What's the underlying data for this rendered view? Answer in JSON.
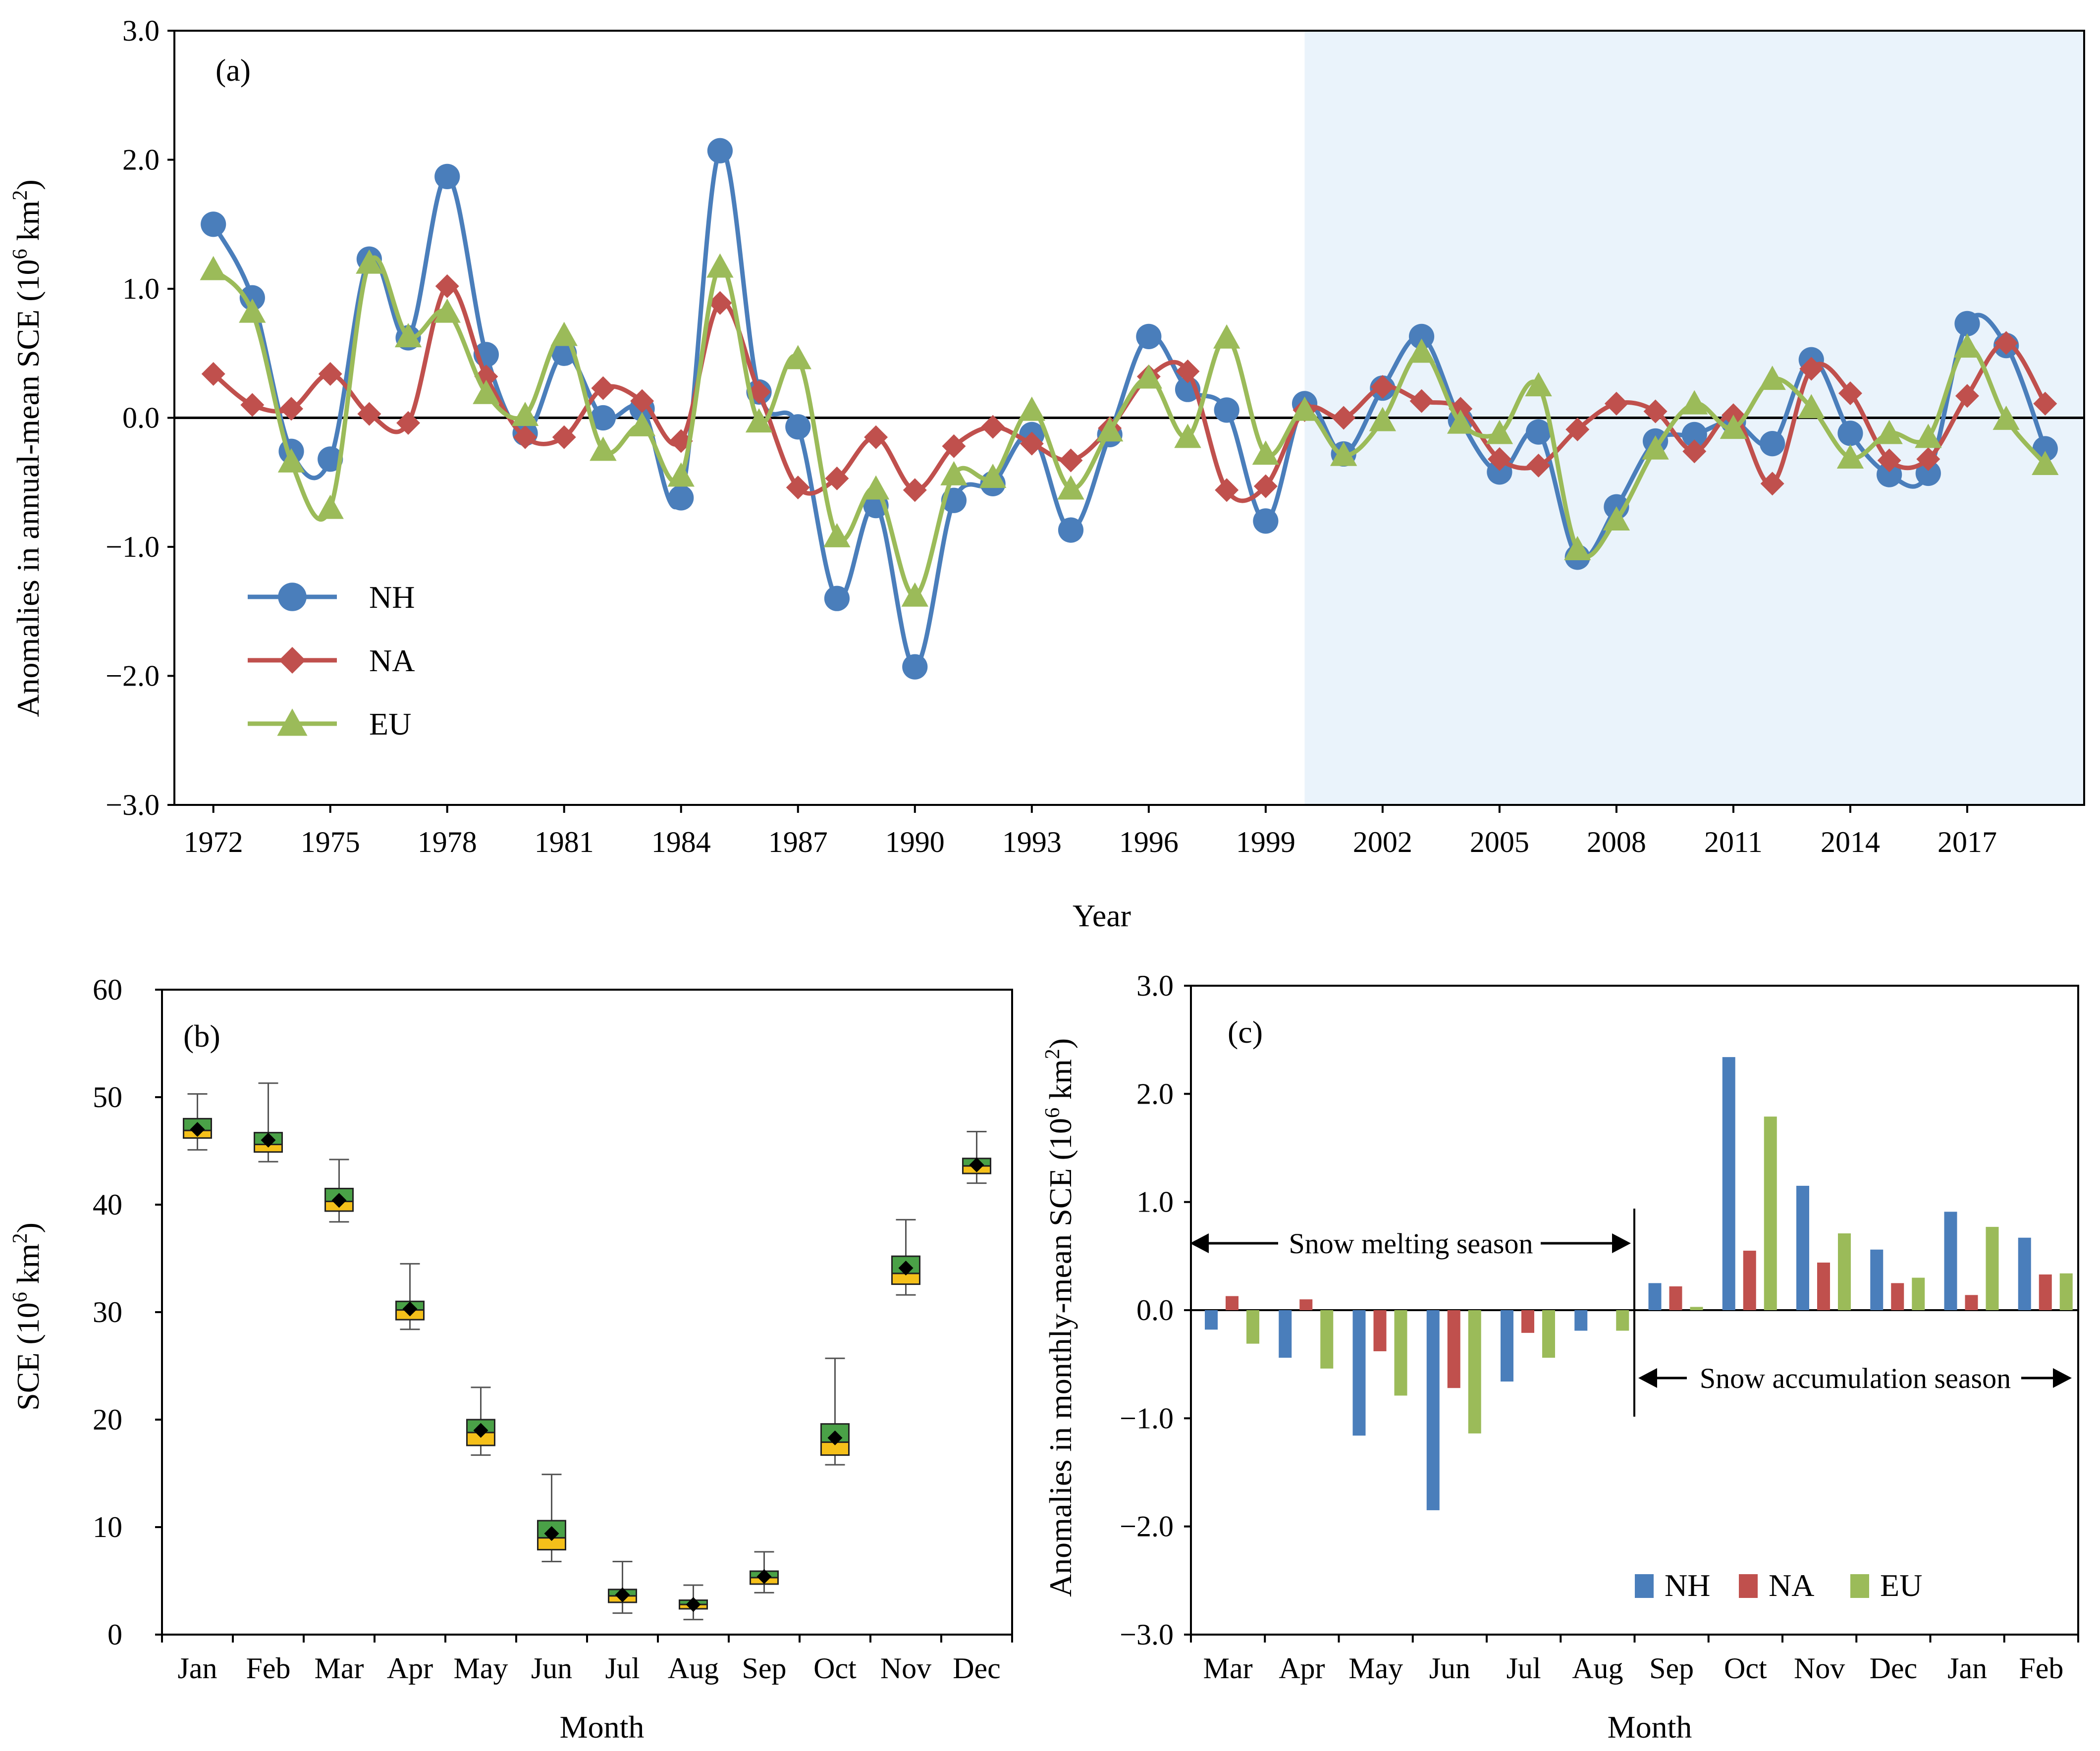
{
  "colors": {
    "nh": "#4a7ebb",
    "na": "#c0504d",
    "eu": "#9bbb59",
    "highlight": "#eaf3fb",
    "box_upper": "#4aa147",
    "box_lower": "#f5c01a"
  },
  "chart_data": [
    {
      "panel": "(a)",
      "type": "line",
      "xlabel": "Year",
      "ylabel": "Anomalies in annual-mean SCE (10",
      "ylabel_sup": "6",
      "ylabel_unit": " km",
      "ylabel_sup2": "2",
      "ylabel_end": ")",
      "ylim": [
        -3.0,
        3.0
      ],
      "yticks": [
        "3.0",
        "2.0",
        "1.0",
        "0.0",
        "−1.0",
        "−2.0",
        "−3.0"
      ],
      "ytick_values": [
        3,
        2,
        1,
        0,
        -1,
        -2,
        -3
      ],
      "xlim": [
        1971,
        2020
      ],
      "xticks": [
        "1972",
        "1975",
        "1978",
        "1981",
        "1984",
        "1987",
        "1990",
        "1993",
        "1996",
        "1999",
        "2002",
        "2005",
        "2008",
        "2011",
        "2014",
        "2017"
      ],
      "shaded_from_year": 2000,
      "legend_position": "bottom-left",
      "x": [
        1972,
        1973,
        1974,
        1975,
        1976,
        1977,
        1978,
        1979,
        1980,
        1981,
        1982,
        1983,
        1984,
        1985,
        1986,
        1987,
        1988,
        1989,
        1990,
        1991,
        1992,
        1993,
        1994,
        1995,
        1996,
        1997,
        1998,
        1999,
        2000,
        2001,
        2002,
        2003,
        2004,
        2005,
        2006,
        2007,
        2008,
        2009,
        2010,
        2011,
        2012,
        2013,
        2014,
        2015,
        2016,
        2017,
        2018,
        2019
      ],
      "series": [
        {
          "name": "NH",
          "key": "nh",
          "marker": "circle",
          "values": [
            1.5,
            0.93,
            -0.26,
            -0.32,
            1.23,
            0.62,
            1.87,
            0.49,
            -0.12,
            0.5,
            0.0,
            0.07,
            -0.62,
            2.07,
            0.2,
            -0.07,
            -1.4,
            -0.68,
            -1.93,
            -0.64,
            -0.51,
            -0.13,
            -0.87,
            -0.13,
            0.63,
            0.22,
            0.06,
            -0.8,
            0.11,
            -0.28,
            0.23,
            0.63,
            -0.02,
            -0.42,
            -0.11,
            -1.08,
            -0.69,
            -0.18,
            -0.13,
            -0.03,
            -0.2,
            0.45,
            -0.12,
            -0.44,
            -0.43,
            0.73,
            0.56,
            -0.24
          ]
        },
        {
          "name": "NA",
          "key": "na",
          "marker": "diamond",
          "values": [
            0.34,
            0.1,
            0.07,
            0.34,
            0.03,
            -0.04,
            1.02,
            0.32,
            -0.15,
            -0.15,
            0.23,
            0.13,
            -0.18,
            0.89,
            0.2,
            -0.54,
            -0.47,
            -0.15,
            -0.56,
            -0.22,
            -0.07,
            -0.2,
            -0.33,
            -0.08,
            0.32,
            0.36,
            -0.56,
            -0.53,
            0.06,
            0.0,
            0.24,
            0.13,
            0.07,
            -0.32,
            -0.37,
            -0.09,
            0.11,
            0.05,
            -0.26,
            0.02,
            -0.51,
            0.38,
            0.19,
            -0.33,
            -0.32,
            0.17,
            0.58,
            0.11
          ]
        },
        {
          "name": "EU",
          "key": "eu",
          "marker": "triangle",
          "values": [
            1.15,
            0.82,
            -0.34,
            -0.7,
            1.2,
            0.63,
            0.82,
            0.19,
            0.02,
            0.64,
            -0.25,
            -0.06,
            -0.45,
            1.17,
            -0.03,
            0.46,
            -0.92,
            -0.55,
            -1.38,
            -0.44,
            -0.46,
            0.06,
            -0.55,
            -0.1,
            0.31,
            -0.15,
            0.62,
            -0.28,
            0.06,
            -0.29,
            -0.02,
            0.51,
            -0.04,
            -0.12,
            0.25,
            -1.02,
            -0.79,
            -0.24,
            0.11,
            -0.08,
            0.3,
            0.08,
            -0.31,
            -0.12,
            -0.15,
            0.55,
            -0.01,
            -0.36
          ]
        }
      ]
    },
    {
      "panel": "(b)",
      "type": "box",
      "xlabel": "Month",
      "ylabel": "SCE (10",
      "ylabel_sup": "6",
      "ylabel_unit": " km",
      "ylabel_sup2": "2",
      "ylabel_end": ")",
      "ylim": [
        0,
        60
      ],
      "yticks": [
        "60",
        "50",
        "40",
        "30",
        "20",
        "10",
        "0"
      ],
      "ytick_values": [
        60,
        50,
        40,
        30,
        20,
        10,
        0
      ],
      "categories": [
        "Jan",
        "Feb",
        "Mar",
        "Apr",
        "May",
        "Jun",
        "Jul",
        "Aug",
        "Sep",
        "Oct",
        "Nov",
        "Dec"
      ],
      "boxes": [
        {
          "min": 45.1,
          "q1": 46.2,
          "median": 46.9,
          "q3": 48.0,
          "max": 50.3,
          "mean": 47.0
        },
        {
          "min": 44.0,
          "q1": 44.9,
          "median": 45.6,
          "q3": 46.7,
          "max": 51.3,
          "mean": 46.0
        },
        {
          "min": 38.4,
          "q1": 39.4,
          "median": 40.3,
          "q3": 41.5,
          "max": 44.2,
          "mean": 40.4
        },
        {
          "min": 28.4,
          "q1": 29.3,
          "median": 30.2,
          "q3": 31.0,
          "max": 34.5,
          "mean": 30.3
        },
        {
          "min": 16.7,
          "q1": 17.6,
          "median": 18.8,
          "q3": 20.0,
          "max": 23.0,
          "mean": 19.0
        },
        {
          "min": 6.8,
          "q1": 7.9,
          "median": 9.0,
          "q3": 10.6,
          "max": 14.9,
          "mean": 9.4
        },
        {
          "min": 2.0,
          "q1": 3.0,
          "median": 3.6,
          "q3": 4.2,
          "max": 6.8,
          "mean": 3.7
        },
        {
          "min": 1.4,
          "q1": 2.4,
          "median": 2.8,
          "q3": 3.2,
          "max": 4.6,
          "mean": 2.8
        },
        {
          "min": 3.9,
          "q1": 4.7,
          "median": 5.3,
          "q3": 5.9,
          "max": 7.7,
          "mean": 5.4
        },
        {
          "min": 15.8,
          "q1": 16.7,
          "median": 17.9,
          "q3": 19.6,
          "max": 25.7,
          "mean": 18.3
        },
        {
          "min": 31.6,
          "q1": 32.6,
          "median": 33.6,
          "q3": 35.2,
          "max": 38.6,
          "mean": 34.1
        },
        {
          "min": 42.0,
          "q1": 42.9,
          "median": 43.6,
          "q3": 44.3,
          "max": 46.8,
          "mean": 43.7
        }
      ]
    },
    {
      "panel": "(c)",
      "type": "bar",
      "xlabel": "Month",
      "ylabel": "Anomalies in monthly-mean SCE (10",
      "ylabel_sup": "6",
      "ylabel_unit": " km",
      "ylabel_sup2": "2",
      "ylabel_end": ")",
      "ylim": [
        -3.0,
        3.0
      ],
      "yticks": [
        "3.0",
        "2.0",
        "1.0",
        "0.0",
        "−1.0",
        "−2.0",
        "−3.0"
      ],
      "ytick_values": [
        3,
        2,
        1,
        0,
        -1,
        -2,
        -3
      ],
      "categories": [
        "Mar",
        "Apr",
        "May",
        "Jun",
        "Jul",
        "Aug",
        "Sep",
        "Oct",
        "Nov",
        "Dec",
        "Jan",
        "Feb"
      ],
      "legend_position": "bottom-right",
      "annotations": {
        "melting": "Snow melting season",
        "accumulation": "Snow accumulation season"
      },
      "series": [
        {
          "name": "NH",
          "key": "nh",
          "values": [
            -0.18,
            -0.44,
            -1.16,
            -1.85,
            -0.66,
            -0.19,
            0.25,
            2.34,
            1.15,
            0.56,
            0.91,
            0.67
          ]
        },
        {
          "name": "NA",
          "key": "na",
          "values": [
            0.13,
            0.1,
            -0.38,
            -0.72,
            -0.21,
            0.0,
            0.22,
            0.55,
            0.44,
            0.25,
            0.14,
            0.33
          ]
        },
        {
          "name": "EU",
          "key": "eu",
          "values": [
            -0.31,
            -0.54,
            -0.79,
            -1.14,
            -0.44,
            -0.19,
            0.03,
            1.79,
            0.71,
            0.3,
            0.77,
            0.34
          ]
        }
      ]
    }
  ]
}
